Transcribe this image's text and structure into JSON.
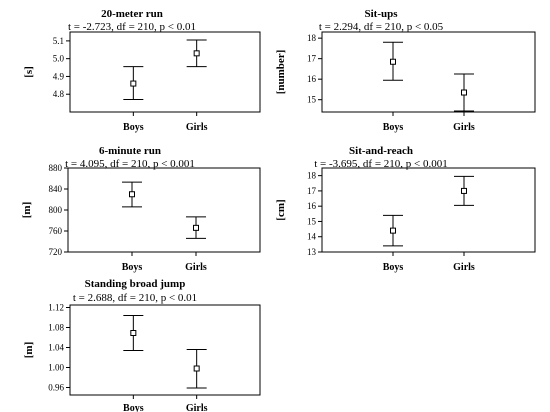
{
  "chart_data": [
    {
      "type": "errorbar",
      "title": "20-meter run",
      "stats": "t = -2.723, df = 210, p < 0.01",
      "ylabel": "[s]",
      "ylim": [
        4.7,
        5.15
      ],
      "yticks": [
        "4.8",
        "4.9",
        "5.0",
        "5.1"
      ],
      "categories": [
        "Boys",
        "Girls"
      ],
      "means": [
        4.86,
        5.03
      ],
      "lower": [
        4.77,
        4.955
      ],
      "upper": [
        4.955,
        5.105
      ],
      "grid": false
    },
    {
      "type": "errorbar",
      "title": "Sit-ups",
      "stats": "t = 2.294, df = 210, p < 0.05",
      "ylabel": "[number]",
      "ylim": [
        14.4,
        18.3
      ],
      "yticks": [
        "15",
        "16",
        "17",
        "18"
      ],
      "categories": [
        "Boys",
        "Girls"
      ],
      "means": [
        16.85,
        15.35
      ],
      "lower": [
        15.95,
        14.45
      ],
      "upper": [
        17.8,
        16.25
      ],
      "grid": false
    },
    {
      "type": "errorbar",
      "title": "6-minute run",
      "stats": "t = 4.095, df = 210, p < 0.001",
      "ylabel": "[m]",
      "ylim": [
        720,
        880
      ],
      "yticks": [
        "720",
        "760",
        "800",
        "840",
        "880"
      ],
      "categories": [
        "Boys",
        "Girls"
      ],
      "means": [
        830,
        766
      ],
      "lower": [
        806,
        746
      ],
      "upper": [
        853,
        787
      ],
      "grid": false
    },
    {
      "type": "errorbar",
      "title": "Sit-and-reach",
      "stats": "t = -3.695, df = 210, p < 0.001",
      "ylabel": "[cm]",
      "ylim": [
        13,
        18.5
      ],
      "yticks": [
        "13",
        "14",
        "15",
        "16",
        "17",
        "18"
      ],
      "categories": [
        "Boys",
        "Girls"
      ],
      "means": [
        14.4,
        17.0
      ],
      "lower": [
        13.4,
        16.05
      ],
      "upper": [
        15.4,
        17.95
      ],
      "grid": false
    },
    {
      "type": "errorbar",
      "title": "Standing broad jump",
      "stats": "t = 2.688, df = 210, p < 0.01",
      "ylabel": "[m]",
      "ylim": [
        0.945,
        1.125
      ],
      "yticks": [
        "0.96",
        "1.00",
        "1.04",
        "1.08",
        "1.12"
      ],
      "categories": [
        "Boys",
        "Girls"
      ],
      "means": [
        1.069,
        0.998
      ],
      "lower": [
        1.034,
        0.959
      ],
      "upper": [
        1.104,
        1.036
      ],
      "grid": false
    }
  ]
}
